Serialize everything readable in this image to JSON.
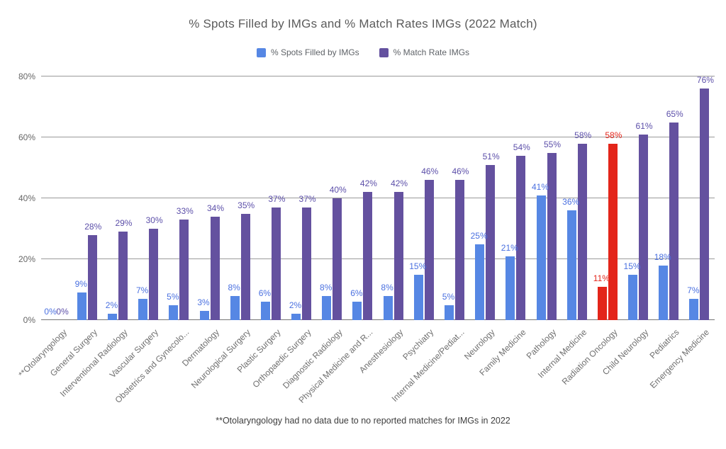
{
  "chart_data": {
    "type": "bar",
    "title": "% Spots Filled by IMGs and % Match Rates IMGs (2022 Match)",
    "footnote": "**Otolaryngology had no data due to no reported matches for IMGs in 2022",
    "legend_position": "top",
    "grid": true,
    "ylim": [
      0,
      80
    ],
    "yticks": [
      "0%",
      "20%",
      "40%",
      "60%",
      "80%"
    ],
    "categories": [
      "**Otolaryngology",
      "General Surgery",
      "Interventional Radiology",
      "Vascular Surgery",
      "Obstetrics and Gynecolo...",
      "Dermatology",
      "Neurological Surgery",
      "Plastic Surgery",
      "Orthopaedic Surgery",
      "Diagnostic Radiology",
      "Physical Medicine and R...",
      "Anesthesiology",
      "Psychiatry",
      "Internal Medicine/Pediat...",
      "Neurology",
      "Family Medicine",
      "Pathology",
      "Internal Medicine",
      "Radiation Oncology",
      "Child Neurology",
      "Pediatrics",
      "Emergency Medicine"
    ],
    "series": [
      {
        "name": "% Spots Filled by IMGs",
        "values": [
          0,
          9,
          2,
          7,
          5,
          3,
          8,
          6,
          2,
          8,
          6,
          8,
          15,
          5,
          25,
          21,
          41,
          36,
          11,
          15,
          18,
          7
        ]
      },
      {
        "name": "% Match Rate IMGs",
        "values": [
          0,
          28,
          29,
          30,
          33,
          34,
          35,
          37,
          37,
          40,
          42,
          42,
          46,
          46,
          51,
          54,
          55,
          58,
          58,
          61,
          65,
          76
        ]
      }
    ],
    "highlight": {
      "category": "Radiation Oncology",
      "index": 18,
      "color": "#e3251a"
    },
    "colors": {
      "blue_bar": "#5687e4",
      "blue_label": "#4a70e0",
      "purple_bar": "#64519f",
      "purple_label": "#5c4fa9",
      "red": "#e3251a",
      "gridline": "#9a9a9a"
    }
  }
}
